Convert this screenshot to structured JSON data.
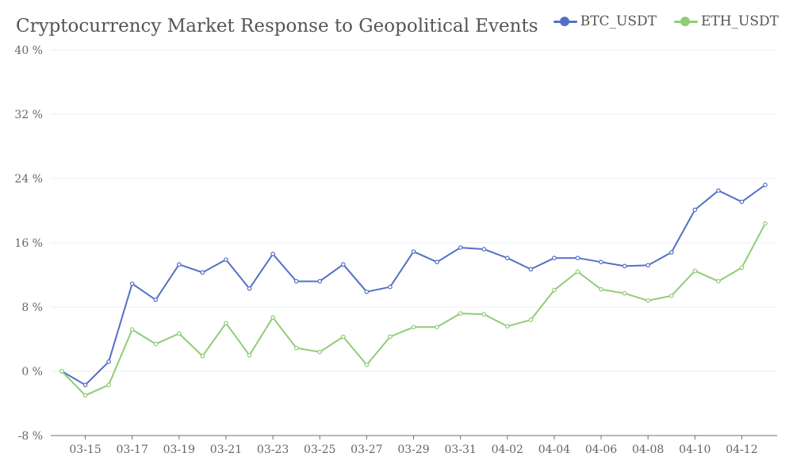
{
  "colors": {
    "btc": "#5470c6",
    "eth": "#91cc75",
    "grid": "#e8ecf4",
    "axis": "#6e7079"
  },
  "chart_data": {
    "type": "line",
    "title": "Cryptocurrency Market Response to Geopolitical Events",
    "xlabel": "",
    "ylabel": "",
    "ylim": [
      -8,
      40
    ],
    "y_ticks": [
      "-8 %",
      "0 %",
      "8 %",
      "16 %",
      "24 %",
      "32 %",
      "40 %"
    ],
    "y_tick_values": [
      -8,
      0,
      8,
      16,
      24,
      32,
      40
    ],
    "grid": true,
    "legend": "top-right",
    "x": [
      "03-14",
      "03-15",
      "03-16",
      "03-17",
      "03-18",
      "03-19",
      "03-20",
      "03-21",
      "03-22",
      "03-23",
      "03-24",
      "03-25",
      "03-26",
      "03-27",
      "03-28",
      "03-29",
      "03-30",
      "03-31",
      "04-01",
      "04-02",
      "04-03",
      "04-04",
      "04-05",
      "04-06",
      "04-07",
      "04-08",
      "04-09",
      "04-10",
      "04-11",
      "04-12",
      "04-13"
    ],
    "x_tick_labels": [
      "03-15",
      "03-17",
      "03-19",
      "03-21",
      "03-23",
      "03-25",
      "03-27",
      "03-29",
      "03-31",
      "04-02",
      "04-04",
      "04-06",
      "04-08",
      "04-10",
      "04-12"
    ],
    "series": [
      {
        "name": "BTC_USDT",
        "values": [
          0,
          -1.7,
          1.2,
          10.9,
          8.9,
          13.3,
          12.3,
          13.9,
          10.3,
          14.6,
          11.2,
          11.2,
          13.3,
          9.9,
          10.5,
          14.9,
          13.6,
          15.4,
          15.2,
          14.1,
          12.7,
          14.1,
          14.1,
          13.6,
          13.1,
          13.2,
          14.8,
          20.1,
          22.5,
          21.1,
          23.2
        ]
      },
      {
        "name": "ETH_USDT",
        "values": [
          0,
          -3.0,
          -1.7,
          5.2,
          3.4,
          4.7,
          1.9,
          6.0,
          2.0,
          6.7,
          2.9,
          2.4,
          4.3,
          0.8,
          4.3,
          5.5,
          5.5,
          7.2,
          7.1,
          5.6,
          6.4,
          10.1,
          12.4,
          10.2,
          9.7,
          8.8,
          9.4,
          12.5,
          11.2,
          12.9,
          18.4
        ]
      }
    ]
  }
}
